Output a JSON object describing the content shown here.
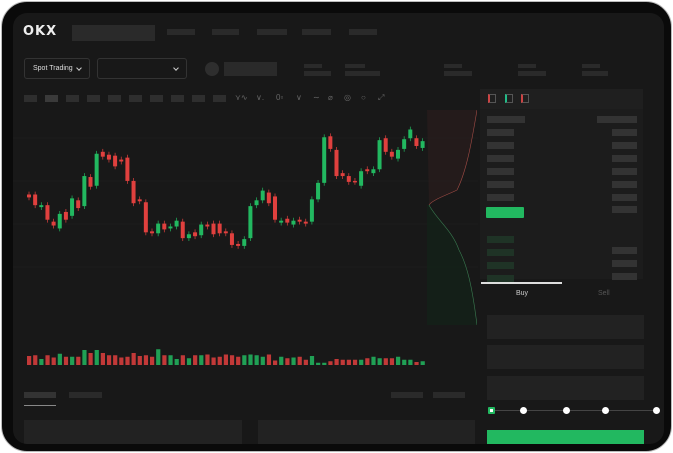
{
  "brand": {
    "logo_text": "OKX"
  },
  "selectors": {
    "market_type": "Spot Trading",
    "pair": ""
  },
  "trade_tabs": {
    "buy": "Buy",
    "sell": "Sell",
    "active": "Buy"
  },
  "leverage_slider": {
    "value_percent": 0,
    "stops": 5
  },
  "colors": {
    "up": "#22b860",
    "down": "#e0403e",
    "background": "#181818",
    "panel": "#1c1c1c"
  },
  "toolbar_icons": [
    "line-tool-icon",
    "trend-icon",
    "fib-icon",
    "wave-icon",
    "pencil-icon",
    "target-icon",
    "circle-icon",
    "expand-icon"
  ],
  "orderbook_icons": [
    "both-sides-icon",
    "bids-only-icon",
    "asks-only-icon"
  ],
  "chart_data": {
    "type": "candlestick",
    "title": "",
    "xlabel": "",
    "ylabel": "",
    "grid": true,
    "candles": [
      [
        83,
        80
      ],
      [
        83,
        72
      ],
      [
        70,
        72
      ],
      [
        72,
        57
      ],
      [
        55,
        51
      ],
      [
        48,
        63
      ],
      [
        65,
        57
      ],
      [
        61,
        79
      ],
      [
        77,
        69
      ],
      [
        71,
        102
      ],
      [
        101,
        91
      ],
      [
        92,
        125
      ],
      [
        127,
        122
      ],
      [
        124,
        119
      ],
      [
        123,
        112
      ],
      [
        119,
        117
      ],
      [
        121,
        97
      ],
      [
        97,
        74
      ],
      [
        78,
        76
      ],
      [
        75,
        44
      ],
      [
        45,
        43
      ],
      [
        43,
        53
      ],
      [
        53,
        47
      ],
      [
        48,
        50
      ],
      [
        50,
        56
      ],
      [
        55,
        38
      ],
      [
        38,
        42
      ],
      [
        44,
        40
      ],
      [
        41,
        52
      ],
      [
        52,
        50
      ],
      [
        53,
        42
      ],
      [
        53,
        43
      ],
      [
        45,
        43
      ],
      [
        43,
        31
      ],
      [
        32,
        30
      ],
      [
        30,
        37
      ],
      [
        38,
        71
      ],
      [
        72,
        77
      ],
      [
        77,
        87
      ],
      [
        85,
        74
      ],
      [
        81,
        57
      ],
      [
        54,
        56
      ],
      [
        58,
        54
      ],
      [
        52,
        56
      ],
      [
        57,
        55
      ],
      [
        55,
        53
      ],
      [
        55,
        78
      ],
      [
        78,
        95
      ],
      [
        95,
        142
      ],
      [
        143,
        130
      ],
      [
        129,
        102
      ],
      [
        105,
        102
      ],
      [
        102,
        96
      ],
      [
        97,
        96
      ],
      [
        92,
        107
      ],
      [
        109,
        107
      ],
      [
        105,
        109
      ],
      [
        109,
        139
      ],
      [
        141,
        127
      ],
      [
        127,
        122
      ],
      [
        120,
        129
      ],
      [
        130,
        140
      ],
      [
        141,
        150
      ],
      [
        141,
        133
      ],
      [
        131,
        138
      ]
    ],
    "candle_format": [
      "open",
      "close"
    ],
    "volume": [
      12,
      13,
      8,
      13,
      10,
      15,
      11,
      11,
      11,
      20,
      16,
      20,
      16,
      13,
      13,
      10,
      11,
      16,
      12,
      13,
      11,
      21,
      13,
      13,
      8,
      13,
      9,
      13,
      13,
      14,
      10,
      11,
      14,
      13,
      11,
      13,
      14,
      13,
      11,
      14,
      6,
      11,
      9,
      10,
      11,
      7,
      12,
      3,
      3,
      5,
      8,
      7,
      7,
      7,
      7,
      9,
      11,
      9,
      9,
      9,
      11,
      7,
      7,
      4,
      5
    ]
  }
}
